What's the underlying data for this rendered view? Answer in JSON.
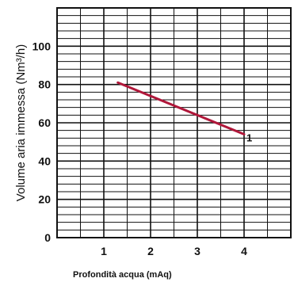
{
  "chart_data": {
    "type": "line",
    "xlabel": "Profondità acqua (mAq)",
    "ylabel": "Volume aria immessa (Nm³/h)",
    "xlim": [
      0,
      5
    ],
    "ylim": [
      0,
      120
    ],
    "x_ticks": [
      "1",
      "2",
      "3",
      "4"
    ],
    "y_ticks": [
      "0",
      "20",
      "40",
      "60",
      "80",
      "100"
    ],
    "grid": true,
    "series": [
      {
        "name": "1",
        "color": "#b0173a",
        "x": [
          1.3,
          4.0
        ],
        "y": [
          81,
          54
        ]
      }
    ]
  }
}
